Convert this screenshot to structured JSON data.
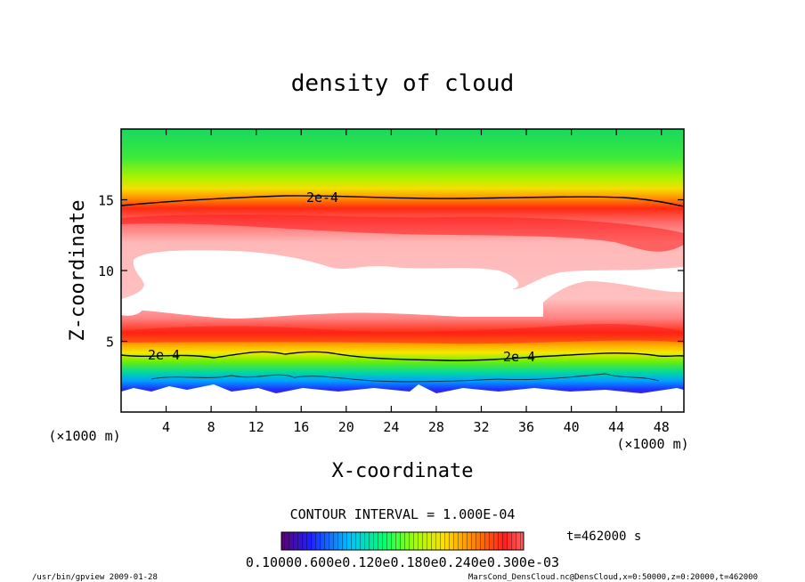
{
  "chart_data": {
    "type": "heatmap",
    "title": "density of cloud",
    "xlabel": "X-coordinate",
    "ylabel": "Z-coordinate",
    "x_unit": "(×1000 m)",
    "z_unit": "(×1000 m)",
    "xlim": [
      0,
      50
    ],
    "ylim": [
      0,
      20
    ],
    "x_ticks": [
      "4",
      "8",
      "12",
      "16",
      "20",
      "24",
      "28",
      "32",
      "36",
      "40",
      "44",
      "48"
    ],
    "y_ticks": [
      "5",
      "10",
      "15"
    ],
    "contour_labels": [
      "2e-4",
      "2e-4",
      "2e-4"
    ],
    "contour_interval_text": "CONTOUR INTERVAL = 1.000E-04",
    "time_text": "t=462000 s",
    "colorbar_labels_text": "0.10000.600e0.120e0.180e0.240e0.300e-03",
    "colormap": [
      "#4b0082",
      "#0000ff",
      "#00bfff",
      "#00ff7f",
      "#7fff00",
      "#ffff00",
      "#ffa500",
      "#ff0000",
      "#ff7f7f",
      "#ffffff"
    ]
  },
  "footer": {
    "left": "/usr/bin/gpview   2009-01-28",
    "right": "MarsCond_DensCloud.nc@DensCloud,x=0:50000,z=0:20000,t=462000"
  }
}
